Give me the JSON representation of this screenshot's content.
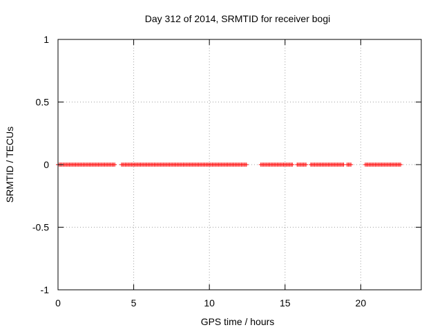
{
  "chart_data": {
    "type": "scatter",
    "title": "Day 312 of 2014, SRMTID for receiver bogi",
    "xlabel": "GPS time / hours",
    "ylabel": "SRMTID / TECUs",
    "xlim": [
      0,
      24
    ],
    "ylim": [
      -1,
      1
    ],
    "xticks": [
      0,
      5,
      10,
      15,
      20
    ],
    "xtick_labels": [
      "0",
      "5",
      "10",
      "15",
      "20"
    ],
    "yticks": [
      -1,
      -0.5,
      0,
      0.5,
      1
    ],
    "ytick_labels": [
      "-1",
      "-0.5",
      "0",
      "0.5",
      "1"
    ],
    "grid": true,
    "marker": "+",
    "series": [
      {
        "name": "SRMTID",
        "color": "#ff0000",
        "y_value": 0,
        "time_intervals_hours": [
          [
            0.0,
            3.8
          ],
          [
            4.2,
            12.5
          ],
          [
            13.4,
            15.5
          ],
          [
            15.8,
            16.4
          ],
          [
            16.7,
            18.9
          ],
          [
            19.1,
            19.4
          ],
          [
            20.3,
            22.7
          ]
        ],
        "sample_spacing_hours": 0.0833
      }
    ]
  }
}
